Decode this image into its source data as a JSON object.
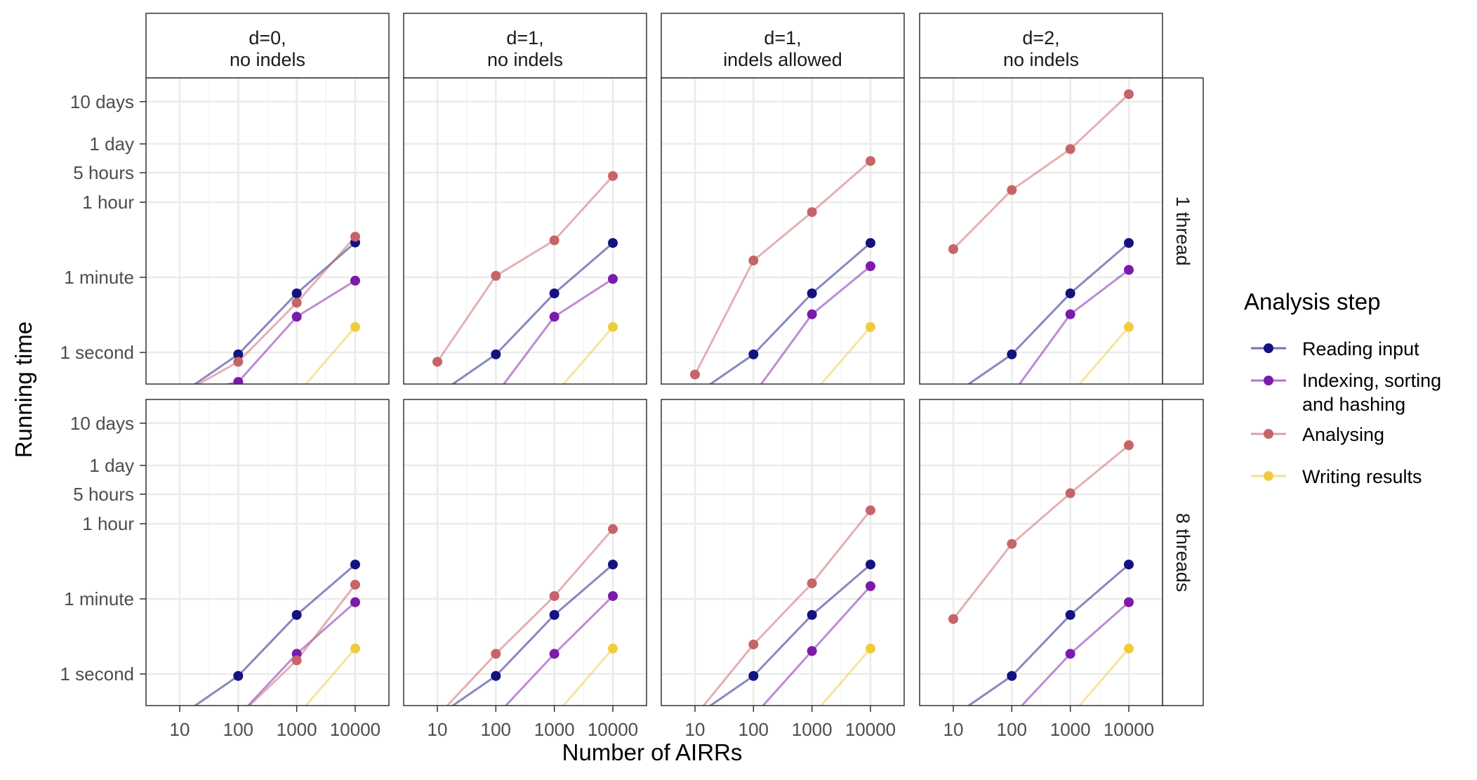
{
  "chart_data": {
    "type": "line",
    "xlabel": "Number of AIRRs",
    "ylabel": "Running time",
    "x_scale": "log",
    "y_scale": "log",
    "x": [
      10,
      100,
      1000,
      10000
    ],
    "x_tick_labels": [
      "10",
      "100",
      "1000",
      "10000"
    ],
    "y_ticks": [
      {
        "label": "1 second",
        "seconds": 1
      },
      {
        "label": "1 minute",
        "seconds": 60
      },
      {
        "label": "1 hour",
        "seconds": 3600
      },
      {
        "label": "5 hours",
        "seconds": 18000
      },
      {
        "label": "1 day",
        "seconds": 86400
      },
      {
        "label": "10 days",
        "seconds": 864000
      }
    ],
    "ylim_seconds": [
      0.1,
      2000000
    ],
    "facet_columns": [
      {
        "line1": "d=0,",
        "line2": "no indels"
      },
      {
        "line1": "d=1,",
        "line2": "no indels"
      },
      {
        "line1": "d=1,",
        "line2": "indels allowed"
      },
      {
        "line1": "d=2,",
        "line2": "no indels"
      }
    ],
    "facet_rows": [
      "1 thread",
      "8 threads"
    ],
    "legend": {
      "title": "Analysis step",
      "placement": "right",
      "items": [
        {
          "label_lines": [
            "Reading input"
          ],
          "color": "#14127f"
        },
        {
          "label_lines": [
            "Indexing, sorting",
            "and hashing"
          ],
          "color": "#7c1aab"
        },
        {
          "label_lines": [
            "Analysing"
          ],
          "color": "#c76469"
        },
        {
          "label_lines": [
            "Writing results"
          ],
          "color": "#f0cb3c"
        }
      ]
    },
    "series": [
      {
        "name": "Reading input",
        "color": "#14127f"
      },
      {
        "name": "Indexing, sorting and hashing",
        "color": "#7c1aab"
      },
      {
        "name": "Analysing",
        "color": "#c76469"
      },
      {
        "name": "Writing results",
        "color": "#f0cb3c"
      }
    ],
    "panels": [
      {
        "row": 0,
        "col": 0,
        "values": [
          [
            0.1,
            0.9,
            25,
            400
          ],
          [
            0.1,
            0.2,
            7,
            50
          ],
          [
            0.1,
            0.6,
            15,
            550
          ],
          [
            0.1,
            0.1,
            0.1,
            4
          ]
        ]
      },
      {
        "row": 0,
        "col": 1,
        "values": [
          [
            0.1,
            0.9,
            25,
            390
          ],
          [
            0.1,
            0.1,
            7,
            55
          ],
          [
            0.6,
            65,
            450,
            15000
          ],
          [
            0.1,
            0.1,
            0.1,
            4
          ]
        ]
      },
      {
        "row": 0,
        "col": 2,
        "values": [
          [
            0.1,
            0.9,
            25,
            390
          ],
          [
            0.1,
            0.1,
            8,
            110
          ],
          [
            0.3,
            150,
            2100,
            34000
          ],
          [
            0.1,
            0.1,
            0.1,
            4
          ]
        ]
      },
      {
        "row": 0,
        "col": 3,
        "values": [
          [
            0.1,
            0.9,
            25,
            390
          ],
          [
            0.1,
            0.1,
            8,
            90
          ],
          [
            280,
            7000,
            65000,
            1300000
          ],
          [
            0.1,
            0.1,
            0.1,
            4
          ]
        ]
      },
      {
        "row": 1,
        "col": 0,
        "values": [
          [
            0.1,
            0.9,
            25,
            390
          ],
          [
            0.1,
            0.1,
            3,
            50
          ],
          [
            0.1,
            0.1,
            2.1,
            130
          ],
          [
            0.1,
            0.1,
            0.1,
            4
          ]
        ]
      },
      {
        "row": 1,
        "col": 1,
        "values": [
          [
            0.1,
            0.9,
            25,
            390
          ],
          [
            0.1,
            0.1,
            3,
            70
          ],
          [
            0.1,
            3,
            70,
            2700
          ],
          [
            0.1,
            0.1,
            0.1,
            4
          ]
        ]
      },
      {
        "row": 1,
        "col": 2,
        "values": [
          [
            0.1,
            0.9,
            25,
            390
          ],
          [
            0.1,
            0.1,
            3.5,
            120
          ],
          [
            0.1,
            5,
            140,
            7500
          ],
          [
            0.1,
            0.1,
            0.1,
            4
          ]
        ]
      },
      {
        "row": 1,
        "col": 3,
        "values": [
          [
            0.1,
            0.9,
            25,
            390
          ],
          [
            0.1,
            0.1,
            3,
            50
          ],
          [
            20,
            1200,
            19000,
            260000
          ],
          [
            0.1,
            0.1,
            0.1,
            4
          ]
        ]
      }
    ]
  }
}
